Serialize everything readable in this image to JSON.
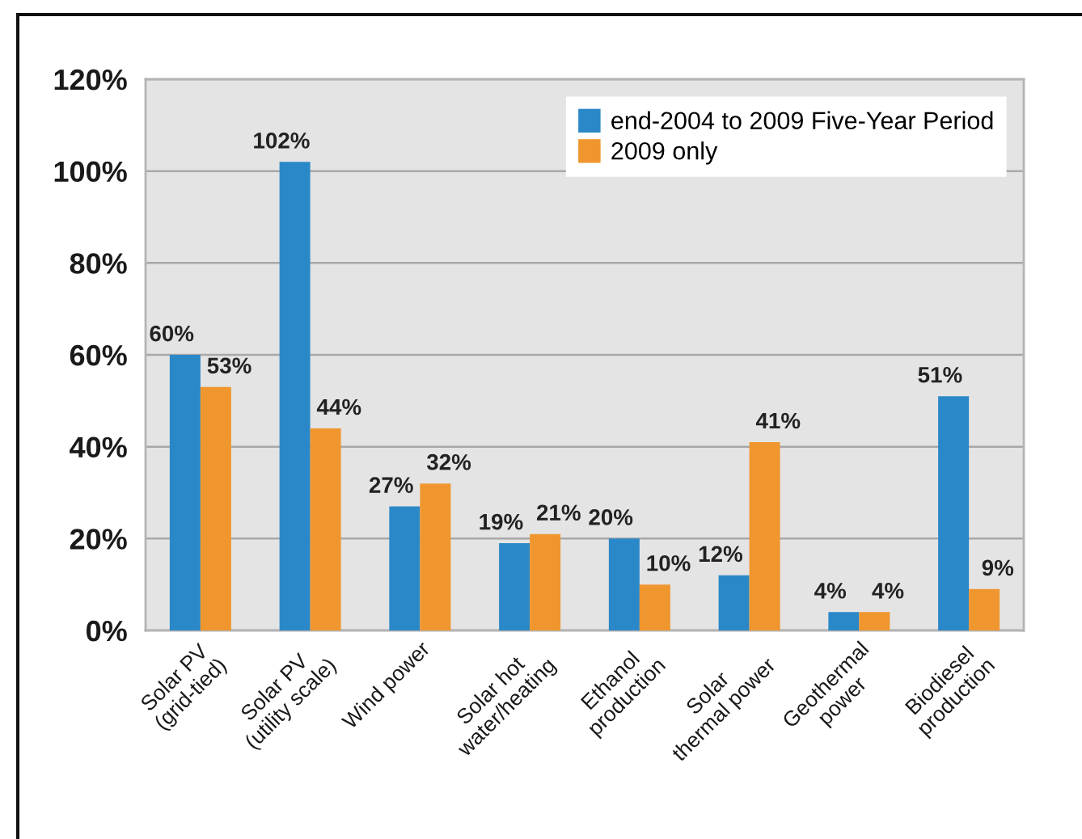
{
  "chart_data": {
    "type": "bar",
    "categories": [
      "Solar PV\n(grid-tied)",
      "Solar PV\n(utility scale)",
      "Wind power",
      "Solar hot\nwater/heating",
      "Ethanol\nproduction",
      "Solar\nthermal power",
      "Geothermal\npower",
      "Biodiesel\nproduction"
    ],
    "series": [
      {
        "name": "end-2004 to 2009 Five-Year Period",
        "color": "#2b88c8",
        "values": [
          60,
          102,
          27,
          19,
          20,
          12,
          4,
          51
        ],
        "value_labels": [
          "60%",
          "102%",
          "27%",
          "19%",
          "20%",
          "12%",
          "4%",
          "51%"
        ]
      },
      {
        "name": "2009 only",
        "color": "#f0962e",
        "values": [
          53,
          44,
          32,
          21,
          10,
          41,
          4,
          9
        ],
        "value_labels": [
          "53%",
          "44%",
          "32%",
          "21%",
          "10%",
          "41%",
          "4%",
          "9%"
        ]
      }
    ],
    "ylim": [
      0,
      120
    ],
    "yticks": [
      {
        "value": 0,
        "label": "0%"
      },
      {
        "value": 20,
        "label": "20%"
      },
      {
        "value": 40,
        "label": "40%"
      },
      {
        "value": 60,
        "label": "60%"
      },
      {
        "value": 80,
        "label": "80%"
      },
      {
        "value": 100,
        "label": "100%"
      },
      {
        "value": 120,
        "label": "120%"
      }
    ],
    "grid": "y",
    "legend": "top right"
  }
}
